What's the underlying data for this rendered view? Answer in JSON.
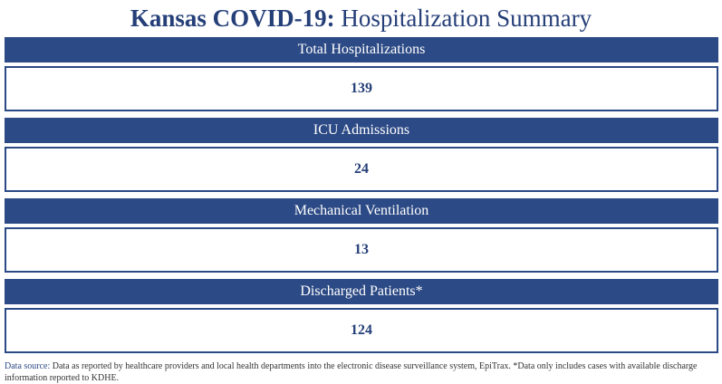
{
  "header": {
    "title_bold": "Kansas COVID-19:",
    "title_regular": "Hospitalization Summary"
  },
  "panels": [
    {
      "label": "Total Hospitalizations",
      "value": "139"
    },
    {
      "label": "ICU Admissions",
      "value": "24"
    },
    {
      "label": "Mechanical Ventilation",
      "value": "13"
    },
    {
      "label": "Discharged Patients*",
      "value": "124"
    }
  ],
  "footer": {
    "source_label": "Data source:",
    "source_text": "Data as reported by healthcare providers and local health departments into the electronic disease surveillance system, EpiTrax. *Data only includes cases with available discharge information reported to KDHE."
  },
  "colors": {
    "accent": "#2c4a85",
    "title": "#253f78"
  }
}
